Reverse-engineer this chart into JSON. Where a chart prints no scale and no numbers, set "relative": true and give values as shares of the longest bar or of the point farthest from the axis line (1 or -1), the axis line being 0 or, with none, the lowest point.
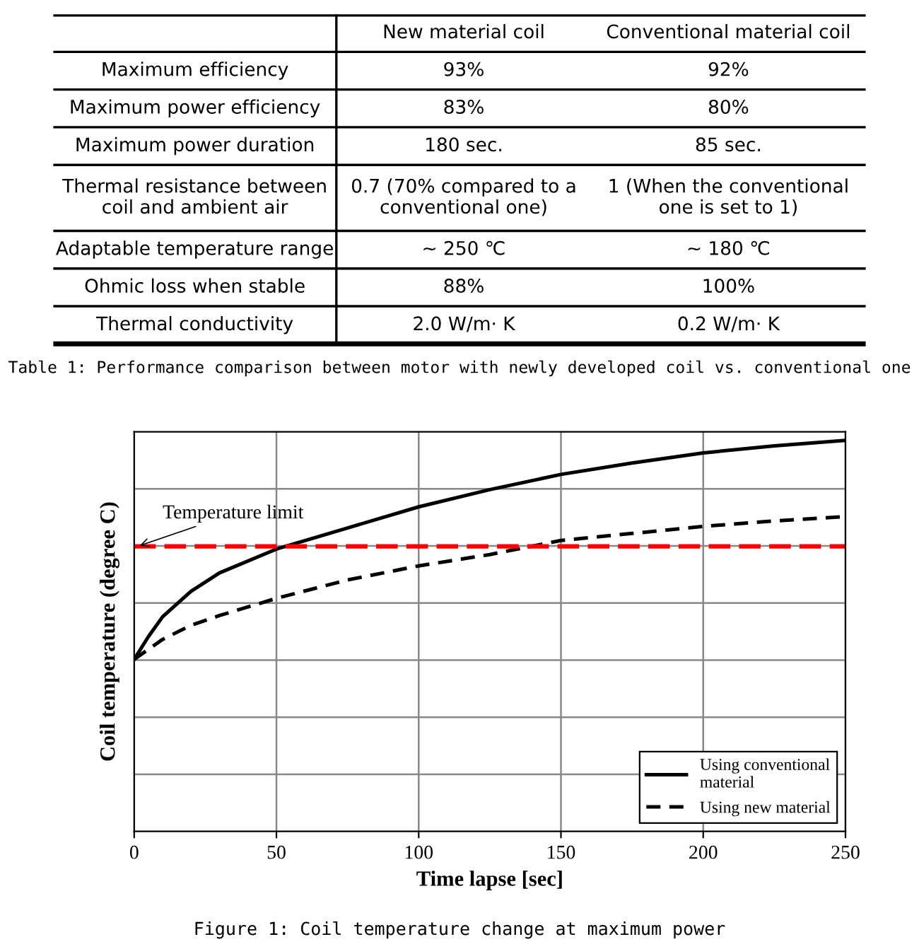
{
  "chart_data": [
    {
      "type": "other",
      "categories": [
        "New material coil",
        "Conventional material coil"
      ],
      "y_categories": [
        "Maximum efficiency",
        "Maximum power efficiency",
        "Maximum power duration",
        "Thermal resistance between\ncoil and ambient air",
        "Adaptable temperature range",
        "Ohmic loss when stable",
        "Thermal conductivity"
      ],
      "cell_labels": [
        [
          "93%",
          "92%"
        ],
        [
          "83%",
          "80%"
        ],
        [
          "180 sec.",
          "85 sec."
        ],
        [
          "0.7 (70% compared to a\nconventional one)",
          "1 (When the conventional\none is set to 1)"
        ],
        [
          "~ 250 ℃",
          "~ 180 ℃"
        ],
        [
          "88%",
          "100%"
        ],
        [
          "2.0 W/m· K",
          "0.2 W/m· K"
        ]
      ],
      "annotations": [
        "Table 1: Performance comparison between motor with newly developed coil vs. conventional one"
      ]
    },
    {
      "type": "line",
      "relative": true,
      "xlabel": "Time lapse [sec]",
      "ylabel": "Coil temperature (degree C)",
      "xlim": [
        0,
        250
      ],
      "xticks": [
        0,
        50,
        100,
        150,
        200,
        250
      ],
      "grid": true,
      "legend": "bottom right",
      "series": [
        {
          "name": "Using conventional\nmaterial",
          "color": "#000000",
          "line_style": "solid",
          "x": [
            0,
            5,
            10,
            20,
            30,
            50,
            75,
            100,
            125,
            150,
            175,
            200,
            225,
            250
          ],
          "values": [
            0.44,
            0.498,
            0.549,
            0.614,
            0.661,
            0.722,
            0.776,
            0.83,
            0.874,
            0.913,
            0.942,
            0.968,
            0.986,
            1
          ]
        },
        {
          "name": "Using new material",
          "color": "#000000",
          "line_style": "dashed",
          "x": [
            0,
            10,
            20,
            30,
            50,
            75,
            100,
            125,
            150,
            175,
            200,
            225,
            250
          ],
          "values": [
            0.44,
            0.491,
            0.527,
            0.552,
            0.596,
            0.643,
            0.679,
            0.708,
            0.744,
            0.762,
            0.78,
            0.794,
            0.805
          ]
        }
      ],
      "ref_lines": [
        {
          "axis": "y",
          "value": 0.729,
          "label": "Temperature limit",
          "color": "#ff0000",
          "line_style": "dashed"
        }
      ],
      "annotations": [
        "Figure 1: Coil temperature change at maximum power"
      ]
    }
  ]
}
